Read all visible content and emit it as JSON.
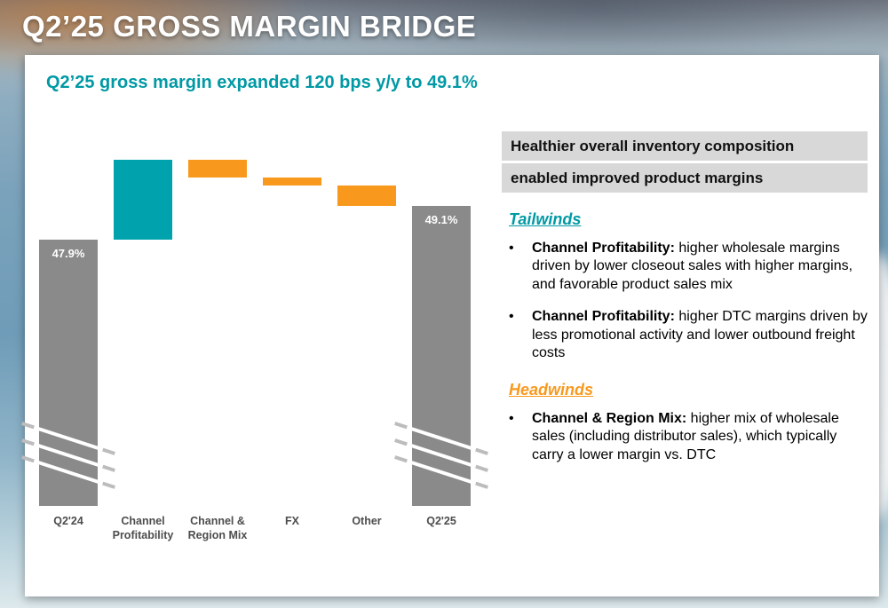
{
  "slide": {
    "title": "Q2’25 GROSS MARGIN BRIDGE",
    "subtitle": "Q2’25 gross margin expanded 120 bps y/y to 49.1%"
  },
  "colors": {
    "teal": "#00A3AD",
    "orange": "#F8991D",
    "gray_bar": "#8A8A8A",
    "highlight_gray": "#D8D8D8"
  },
  "chart_data": {
    "type": "waterfall",
    "title": "Q2’25 gross margin expanded 120 bps y/y to 49.1%",
    "categories": [
      "Q2'24",
      "Channel Profitability",
      "Channel & Region Mix",
      "FX",
      "Other",
      "Q2'25"
    ],
    "bar_kinds": [
      "total",
      "increase",
      "decrease",
      "decrease",
      "decrease",
      "total"
    ],
    "values": [
      47.9,
      2.8,
      -0.6,
      -0.3,
      -0.7,
      49.1
    ],
    "value_labels": {
      "Q2'24": "47.9%",
      "Q2'25": "49.1%"
    },
    "units": "percentage points (delta bars estimated from bar heights; totals labeled on chart)",
    "axis_break": true,
    "legend": "none",
    "colors": {
      "total": "#8A8A8A",
      "increase": "#00A3AD",
      "decrease": "#F8991D"
    }
  },
  "panel": {
    "headline_line1": "Healthier overall inventory composition",
    "headline_line2": "enabled improved product margins",
    "tailwinds": {
      "heading": "Tailwinds",
      "bullets": [
        {
          "lead": "Channel Profitability:",
          "text": " higher wholesale margins driven by lower closeout sales with higher margins, and favorable product sales mix"
        },
        {
          "lead": "Channel Profitability:",
          "text": " higher DTC margins driven by less promotional activity and lower outbound freight costs"
        }
      ]
    },
    "headwinds": {
      "heading": "Headwinds",
      "bullets": [
        {
          "lead": "Channel & Region Mix:",
          "text": " higher mix of wholesale sales (including distributor sales), which typically carry a lower margin vs. DTC"
        }
      ]
    }
  }
}
